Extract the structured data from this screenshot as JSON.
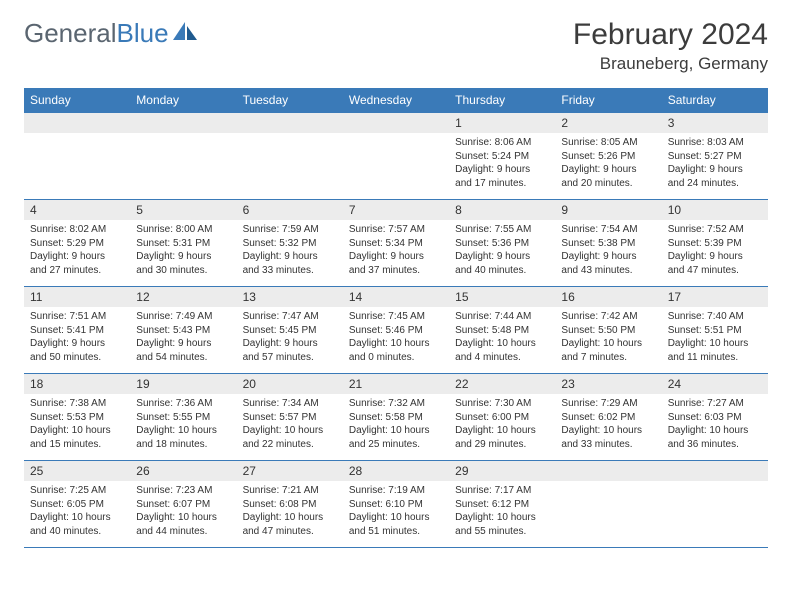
{
  "logo": {
    "text_general": "General",
    "text_blue": "Blue"
  },
  "title": {
    "month": "February 2024",
    "location": "Brauneberg, Germany"
  },
  "colors": {
    "header_bar": "#3a7ab8",
    "daynum_bg": "#ececec",
    "text": "#333333",
    "logo_gray": "#5a6570",
    "logo_blue": "#3a7ab8",
    "white": "#ffffff"
  },
  "weekdays": [
    "Sunday",
    "Monday",
    "Tuesday",
    "Wednesday",
    "Thursday",
    "Friday",
    "Saturday"
  ],
  "table": {
    "type": "calendar",
    "columns": 7,
    "rows": 5,
    "font_size_body": 10,
    "font_size_daynum": 12,
    "font_size_weekday": 12
  },
  "days": [
    {
      "num": "1",
      "sunrise": "Sunrise: 8:06 AM",
      "sunset": "Sunset: 5:24 PM",
      "day1": "Daylight: 9 hours",
      "day2": "and 17 minutes."
    },
    {
      "num": "2",
      "sunrise": "Sunrise: 8:05 AM",
      "sunset": "Sunset: 5:26 PM",
      "day1": "Daylight: 9 hours",
      "day2": "and 20 minutes."
    },
    {
      "num": "3",
      "sunrise": "Sunrise: 8:03 AM",
      "sunset": "Sunset: 5:27 PM",
      "day1": "Daylight: 9 hours",
      "day2": "and 24 minutes."
    },
    {
      "num": "4",
      "sunrise": "Sunrise: 8:02 AM",
      "sunset": "Sunset: 5:29 PM",
      "day1": "Daylight: 9 hours",
      "day2": "and 27 minutes."
    },
    {
      "num": "5",
      "sunrise": "Sunrise: 8:00 AM",
      "sunset": "Sunset: 5:31 PM",
      "day1": "Daylight: 9 hours",
      "day2": "and 30 minutes."
    },
    {
      "num": "6",
      "sunrise": "Sunrise: 7:59 AM",
      "sunset": "Sunset: 5:32 PM",
      "day1": "Daylight: 9 hours",
      "day2": "and 33 minutes."
    },
    {
      "num": "7",
      "sunrise": "Sunrise: 7:57 AM",
      "sunset": "Sunset: 5:34 PM",
      "day1": "Daylight: 9 hours",
      "day2": "and 37 minutes."
    },
    {
      "num": "8",
      "sunrise": "Sunrise: 7:55 AM",
      "sunset": "Sunset: 5:36 PM",
      "day1": "Daylight: 9 hours",
      "day2": "and 40 minutes."
    },
    {
      "num": "9",
      "sunrise": "Sunrise: 7:54 AM",
      "sunset": "Sunset: 5:38 PM",
      "day1": "Daylight: 9 hours",
      "day2": "and 43 minutes."
    },
    {
      "num": "10",
      "sunrise": "Sunrise: 7:52 AM",
      "sunset": "Sunset: 5:39 PM",
      "day1": "Daylight: 9 hours",
      "day2": "and 47 minutes."
    },
    {
      "num": "11",
      "sunrise": "Sunrise: 7:51 AM",
      "sunset": "Sunset: 5:41 PM",
      "day1": "Daylight: 9 hours",
      "day2": "and 50 minutes."
    },
    {
      "num": "12",
      "sunrise": "Sunrise: 7:49 AM",
      "sunset": "Sunset: 5:43 PM",
      "day1": "Daylight: 9 hours",
      "day2": "and 54 minutes."
    },
    {
      "num": "13",
      "sunrise": "Sunrise: 7:47 AM",
      "sunset": "Sunset: 5:45 PM",
      "day1": "Daylight: 9 hours",
      "day2": "and 57 minutes."
    },
    {
      "num": "14",
      "sunrise": "Sunrise: 7:45 AM",
      "sunset": "Sunset: 5:46 PM",
      "day1": "Daylight: 10 hours",
      "day2": "and 0 minutes."
    },
    {
      "num": "15",
      "sunrise": "Sunrise: 7:44 AM",
      "sunset": "Sunset: 5:48 PM",
      "day1": "Daylight: 10 hours",
      "day2": "and 4 minutes."
    },
    {
      "num": "16",
      "sunrise": "Sunrise: 7:42 AM",
      "sunset": "Sunset: 5:50 PM",
      "day1": "Daylight: 10 hours",
      "day2": "and 7 minutes."
    },
    {
      "num": "17",
      "sunrise": "Sunrise: 7:40 AM",
      "sunset": "Sunset: 5:51 PM",
      "day1": "Daylight: 10 hours",
      "day2": "and 11 minutes."
    },
    {
      "num": "18",
      "sunrise": "Sunrise: 7:38 AM",
      "sunset": "Sunset: 5:53 PM",
      "day1": "Daylight: 10 hours",
      "day2": "and 15 minutes."
    },
    {
      "num": "19",
      "sunrise": "Sunrise: 7:36 AM",
      "sunset": "Sunset: 5:55 PM",
      "day1": "Daylight: 10 hours",
      "day2": "and 18 minutes."
    },
    {
      "num": "20",
      "sunrise": "Sunrise: 7:34 AM",
      "sunset": "Sunset: 5:57 PM",
      "day1": "Daylight: 10 hours",
      "day2": "and 22 minutes."
    },
    {
      "num": "21",
      "sunrise": "Sunrise: 7:32 AM",
      "sunset": "Sunset: 5:58 PM",
      "day1": "Daylight: 10 hours",
      "day2": "and 25 minutes."
    },
    {
      "num": "22",
      "sunrise": "Sunrise: 7:30 AM",
      "sunset": "Sunset: 6:00 PM",
      "day1": "Daylight: 10 hours",
      "day2": "and 29 minutes."
    },
    {
      "num": "23",
      "sunrise": "Sunrise: 7:29 AM",
      "sunset": "Sunset: 6:02 PM",
      "day1": "Daylight: 10 hours",
      "day2": "and 33 minutes."
    },
    {
      "num": "24",
      "sunrise": "Sunrise: 7:27 AM",
      "sunset": "Sunset: 6:03 PM",
      "day1": "Daylight: 10 hours",
      "day2": "and 36 minutes."
    },
    {
      "num": "25",
      "sunrise": "Sunrise: 7:25 AM",
      "sunset": "Sunset: 6:05 PM",
      "day1": "Daylight: 10 hours",
      "day2": "and 40 minutes."
    },
    {
      "num": "26",
      "sunrise": "Sunrise: 7:23 AM",
      "sunset": "Sunset: 6:07 PM",
      "day1": "Daylight: 10 hours",
      "day2": "and 44 minutes."
    },
    {
      "num": "27",
      "sunrise": "Sunrise: 7:21 AM",
      "sunset": "Sunset: 6:08 PM",
      "day1": "Daylight: 10 hours",
      "day2": "and 47 minutes."
    },
    {
      "num": "28",
      "sunrise": "Sunrise: 7:19 AM",
      "sunset": "Sunset: 6:10 PM",
      "day1": "Daylight: 10 hours",
      "day2": "and 51 minutes."
    },
    {
      "num": "29",
      "sunrise": "Sunrise: 7:17 AM",
      "sunset": "Sunset: 6:12 PM",
      "day1": "Daylight: 10 hours",
      "day2": "and 55 minutes."
    }
  ],
  "layout": {
    "first_day_column": 4,
    "total_cells": 35
  }
}
